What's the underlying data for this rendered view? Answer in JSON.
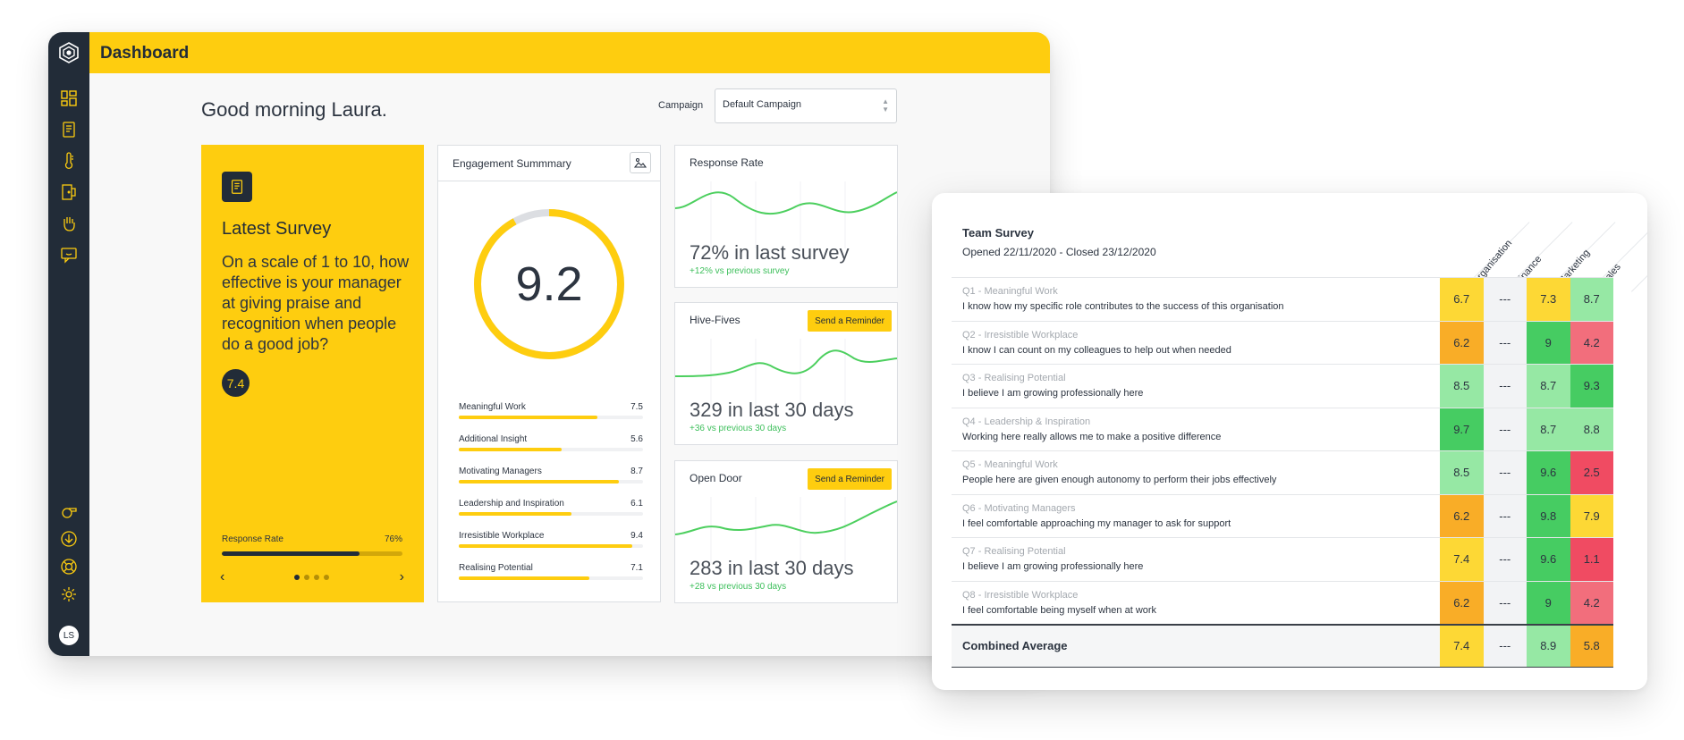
{
  "app": {
    "title": "Dashboard",
    "accent_color": "#fecd0f",
    "sidebar_color": "#222c38"
  },
  "sidebar": {
    "items": [
      {
        "name": "dashboard",
        "icon": "grid-icon"
      },
      {
        "name": "surveys",
        "icon": "document-icon"
      },
      {
        "name": "temperature",
        "icon": "thermometer-icon"
      },
      {
        "name": "open-door",
        "icon": "door-icon"
      },
      {
        "name": "hive-fives",
        "icon": "high-five-icon"
      },
      {
        "name": "feedback",
        "icon": "chat-icon"
      }
    ],
    "bottom_items": [
      {
        "name": "whistle",
        "icon": "whistle-icon"
      },
      {
        "name": "download",
        "icon": "download-icon"
      },
      {
        "name": "help",
        "icon": "lifebuoy-icon"
      },
      {
        "name": "settings",
        "icon": "gear-icon"
      }
    ],
    "avatar_initials": "LS"
  },
  "header": {
    "greeting": "Good morning Laura.",
    "campaign_label": "Campaign",
    "campaign_value": "Default Campaign"
  },
  "latest_survey": {
    "title": "Latest Survey",
    "question": "On a scale of 1 to 10, how effective is your manager at giving praise and recognition when people do a good job?",
    "score": "7.4",
    "response_label": "Response Rate",
    "response_value": "76%",
    "response_fraction": 0.76,
    "pages": 4,
    "active_page": 0
  },
  "engagement": {
    "title": "Engagement Summmary",
    "score": "9.2",
    "score_fraction": 0.92,
    "metrics": [
      {
        "label": "Meaningful Work",
        "value": "7.5"
      },
      {
        "label": "Additional Insight",
        "value": "5.6"
      },
      {
        "label": "Motivating Managers",
        "value": "8.7"
      },
      {
        "label": "Leadership and Inspiration",
        "value": "6.1"
      },
      {
        "label": "Irresistible Workplace",
        "value": "9.4"
      },
      {
        "label": "Realising Potential",
        "value": "7.1"
      }
    ]
  },
  "stats": [
    {
      "title": "Response Rate",
      "value": "72% in last survey",
      "delta": "+12% vs previous survey",
      "button": ""
    },
    {
      "title": "Hive-Fives",
      "value": "329 in last 30 days",
      "delta": "+36 vs previous 30 days",
      "button": "Send a Reminder"
    },
    {
      "title": "Open Door",
      "value": "283 in last 30 days",
      "delta": "+28 vs previous 30 days",
      "button": "Send a Reminder"
    }
  ],
  "team_survey": {
    "title": "Team Survey",
    "dates": "Opened 22/11/2020 - Closed 23/12/2020",
    "columns": [
      "Organisation",
      "Finance",
      "Marketing",
      "Sales"
    ],
    "rows": [
      {
        "label": "Q1 - Meaningful Work",
        "text": "I know how my specific role contributes to the success of this organisation",
        "scores": [
          "6.7",
          "---",
          "7.3",
          "8.7"
        ]
      },
      {
        "label": "Q2 - Irresistible Workplace",
        "text": "I know I can count on my colleagues to help out when needed",
        "scores": [
          "6.2",
          "---",
          "9",
          "4.2"
        ]
      },
      {
        "label": "Q3 - Realising Potential",
        "text": "I believe I am growing professionally here",
        "scores": [
          "8.5",
          "---",
          "8.7",
          "9.3"
        ]
      },
      {
        "label": "Q4 - Leadership & Inspiration",
        "text": "Working here really allows me to make a positive difference",
        "scores": [
          "9.7",
          "---",
          "8.7",
          "8.8"
        ]
      },
      {
        "label": "Q5 - Meaningful Work",
        "text": "People here are given enough autonomy to perform their jobs effectively",
        "scores": [
          "8.5",
          "---",
          "9.6",
          "2.5"
        ]
      },
      {
        "label": "Q6 - Motivating Managers",
        "text": "I feel comfortable approaching my manager to ask for support",
        "scores": [
          "6.2",
          "---",
          "9.8",
          "7.9"
        ]
      },
      {
        "label": "Q7 - Realising Potential",
        "text": "I believe I am growing professionally here",
        "scores": [
          "7.4",
          "---",
          "9.6",
          "1.1"
        ]
      },
      {
        "label": "Q8 - Irresistible Workplace",
        "text": "I feel comfortable being myself when at work",
        "scores": [
          "6.2",
          "---",
          "9",
          "4.2"
        ]
      }
    ],
    "combined_label": "Combined Average",
    "combined": [
      "7.4",
      "---",
      "8.9",
      "5.8"
    ]
  }
}
